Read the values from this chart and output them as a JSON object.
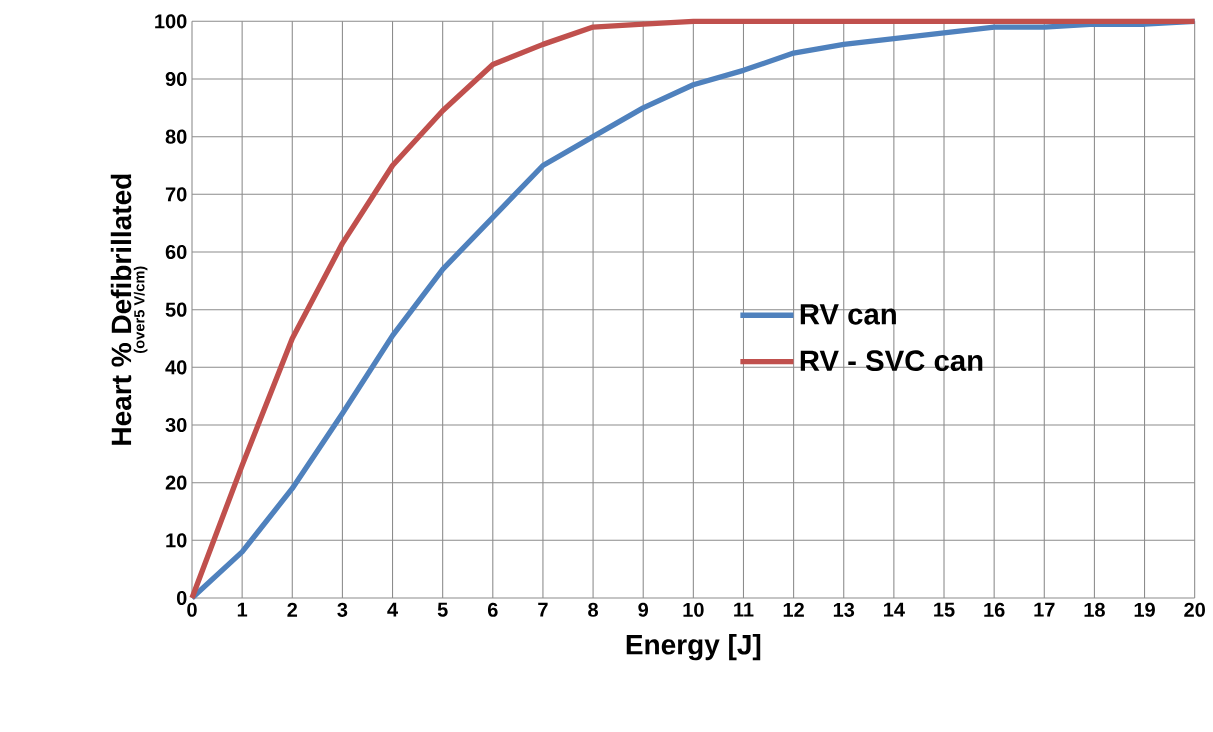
{
  "chart_data": {
    "type": "line",
    "xlabel": "Energy [J]",
    "ylabel": "Heart % Defibrillated",
    "annotations": [
      "(over5 V/cm)"
    ],
    "x": [
      0,
      1,
      2,
      3,
      4,
      5,
      6,
      7,
      8,
      9,
      10,
      11,
      12,
      13,
      14,
      15,
      16,
      17,
      18,
      19,
      20
    ],
    "series": [
      {
        "name": "RV can",
        "color": "#4f81bd",
        "values": [
          0,
          8,
          19,
          32,
          45.5,
          57,
          66,
          75,
          80,
          85,
          89,
          91.5,
          94.5,
          96,
          97,
          98,
          99,
          99,
          99.5,
          99.5,
          100
        ]
      },
      {
        "name": "RV - SVC can",
        "color": "#c0504d",
        "values": [
          0,
          23,
          45,
          61.5,
          75,
          84.5,
          92.5,
          96,
          99,
          99.5,
          100,
          100,
          100,
          100,
          100,
          100,
          100,
          100,
          100,
          100,
          100
        ]
      }
    ],
    "xlim": [
      0,
      20
    ],
    "ylim": [
      0,
      100
    ],
    "xticks": [
      0,
      1,
      2,
      3,
      4,
      5,
      6,
      7,
      8,
      9,
      10,
      11,
      12,
      13,
      14,
      15,
      16,
      17,
      18,
      19,
      20
    ],
    "yticks": [
      0,
      10,
      20,
      30,
      40,
      50,
      60,
      70,
      80,
      90,
      100
    ],
    "grid": true,
    "legend": "right",
    "marker": "none",
    "line_style": "solid"
  }
}
